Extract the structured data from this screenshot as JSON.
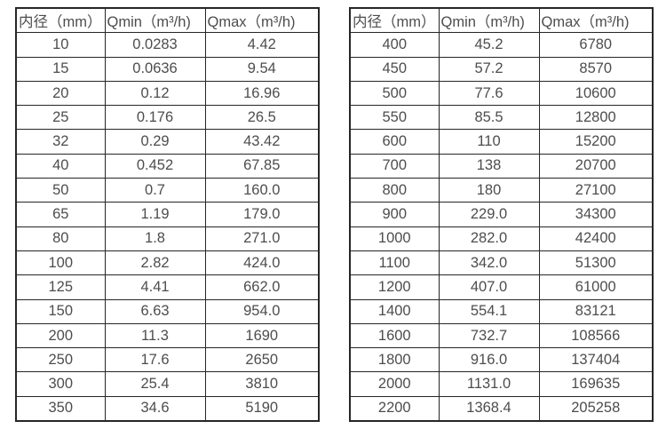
{
  "styles": {
    "border_color": "#262626",
    "text_color": "#4d4d4d",
    "background": "#ffffff"
  },
  "tables": [
    {
      "name": "flow-table-small-diameters",
      "headers": [
        "内径（mm）",
        "Qmin（m³/h)",
        "Qmax（m³/h)"
      ],
      "rows": [
        [
          "10",
          "0.0283",
          "4.42"
        ],
        [
          "15",
          "0.0636",
          "9.54"
        ],
        [
          "20",
          "0.12",
          "16.96"
        ],
        [
          "25",
          "0.176",
          "26.5"
        ],
        [
          "32",
          "0.29",
          "43.42"
        ],
        [
          "40",
          "0.452",
          "67.85"
        ],
        [
          "50",
          "0.7",
          "160.0"
        ],
        [
          "65",
          "1.19",
          "179.0"
        ],
        [
          "80",
          "1.8",
          "271.0"
        ],
        [
          "100",
          "2.82",
          "424.0"
        ],
        [
          "125",
          "4.41",
          "662.0"
        ],
        [
          "150",
          "6.63",
          "954.0"
        ],
        [
          "200",
          "11.3",
          "1690"
        ],
        [
          "250",
          "17.6",
          "2650"
        ],
        [
          "300",
          "25.4",
          "3810"
        ],
        [
          "350",
          "34.6",
          "5190"
        ]
      ]
    },
    {
      "name": "flow-table-large-diameters",
      "headers": [
        "内径（mm）",
        "Qmin（m³/h)",
        "Qmax（m³/h)"
      ],
      "rows": [
        [
          "400",
          "45.2",
          "6780"
        ],
        [
          "450",
          "57.2",
          "8570"
        ],
        [
          "500",
          "77.6",
          "10600"
        ],
        [
          "550",
          "85.5",
          "12800"
        ],
        [
          "600",
          "110",
          "15200"
        ],
        [
          "700",
          "138",
          "20700"
        ],
        [
          "800",
          "180",
          "27100"
        ],
        [
          "900",
          "229.0",
          "34300"
        ],
        [
          "1000",
          "282.0",
          "42400"
        ],
        [
          "1100",
          "342.0",
          "51300"
        ],
        [
          "1200",
          "407.0",
          "61000"
        ],
        [
          "1400",
          "554.1",
          "83121"
        ],
        [
          "1600",
          "732.7",
          "108566"
        ],
        [
          "1800",
          "916.0",
          "137404"
        ],
        [
          "2000",
          "1131.0",
          "169635"
        ],
        [
          "2200",
          "1368.4",
          "205258"
        ]
      ]
    }
  ]
}
